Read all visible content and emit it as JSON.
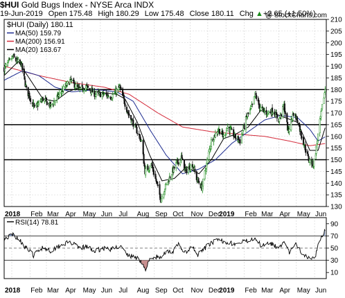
{
  "header": {
    "symbol": "$HUI",
    "index_name": "Gold Bugs Index - NYSE Arca INDX",
    "copyright": "@ StockCharts.com",
    "date": "19-Jun-2019",
    "open_label": "Open",
    "open": "175.48",
    "high_label": "High",
    "high": "180.29",
    "low_label": "Low",
    "low": "175.48",
    "close_label": "Close",
    "close": "180.11",
    "chg_label": "Chg",
    "chg": "+2.65 (+1.50%)",
    "chg_icon": "up-triangle-icon"
  },
  "colors": {
    "price": "#1a8a1a",
    "price_down": "#111111",
    "ma50": "#1b2a8f",
    "ma200": "#d42a3a",
    "ma20": "#000000",
    "rsi": "#000000",
    "grid": "#cfcfcf",
    "level_lines": "#000000"
  },
  "chart_data": [
    {
      "type": "candlestick",
      "title": "$HUI (Daily) 180.11",
      "legend": [
        {
          "label": "MA(50) 159.79",
          "color": "#1b2a8f"
        },
        {
          "label": "MA(200) 156.91",
          "color": "#d42a3a"
        },
        {
          "label": "MA(20) 163.67",
          "color": "#000000"
        }
      ],
      "legend_position": "top-left",
      "x_tick_labels": [
        "2018",
        "Feb",
        "Mar",
        "Apr",
        "May",
        "Jun",
        "Jul",
        "Aug",
        "Sep",
        "Oct",
        "Nov",
        "Dec",
        "2019",
        "Feb",
        "Mar",
        "Apr",
        "May",
        "Jun"
      ],
      "y_tick_labels": [
        "130",
        "135",
        "140",
        "145",
        "150",
        "155",
        "160",
        "165",
        "170",
        "175",
        "180",
        "185",
        "190",
        "195",
        "200",
        "205",
        "210"
      ],
      "ylim": [
        130,
        210
      ],
      "grid": true,
      "horizontal_levels": [
        180,
        165,
        150
      ],
      "price_keypoints": [
        [
          "2017-12-19",
          189
        ],
        [
          "2018-01-03",
          194
        ],
        [
          "2018-01-10",
          192
        ],
        [
          "2018-01-17",
          191
        ],
        [
          "2018-01-26",
          180
        ],
        [
          "2018-02-09",
          172
        ],
        [
          "2018-02-23",
          176
        ],
        [
          "2018-03-09",
          173
        ],
        [
          "2018-03-23",
          178
        ],
        [
          "2018-04-11",
          184
        ],
        [
          "2018-04-25",
          180
        ],
        [
          "2018-05-09",
          181
        ],
        [
          "2018-05-23",
          178
        ],
        [
          "2018-06-06",
          178
        ],
        [
          "2018-06-20",
          177
        ],
        [
          "2018-07-04",
          181
        ],
        [
          "2018-07-18",
          170
        ],
        [
          "2018-08-01",
          163
        ],
        [
          "2018-08-10",
          158
        ],
        [
          "2018-08-16",
          145
        ],
        [
          "2018-08-27",
          148
        ],
        [
          "2018-09-05",
          140
        ],
        [
          "2018-09-12",
          133
        ],
        [
          "2018-09-19",
          138
        ],
        [
          "2018-09-28",
          143
        ],
        [
          "2018-10-08",
          148
        ],
        [
          "2018-10-17",
          151
        ],
        [
          "2018-10-24",
          145
        ],
        [
          "2018-11-05",
          148
        ],
        [
          "2018-11-12",
          142
        ],
        [
          "2018-11-21",
          138
        ],
        [
          "2018-11-28",
          147
        ],
        [
          "2018-12-07",
          158
        ],
        [
          "2018-12-19",
          163
        ],
        [
          "2018-12-28",
          160
        ],
        [
          "2019-01-04",
          164
        ],
        [
          "2019-01-16",
          160
        ],
        [
          "2019-01-25",
          158
        ],
        [
          "2019-02-05",
          168
        ],
        [
          "2019-02-15",
          173
        ],
        [
          "2019-02-20",
          178
        ],
        [
          "2019-02-28",
          172
        ],
        [
          "2019-03-11",
          170
        ],
        [
          "2019-03-22",
          171
        ],
        [
          "2019-04-01",
          167
        ],
        [
          "2019-04-10",
          173
        ],
        [
          "2019-04-17",
          162
        ],
        [
          "2019-04-26",
          170
        ],
        [
          "2019-05-03",
          167
        ],
        [
          "2019-05-10",
          160
        ],
        [
          "2019-05-22",
          150
        ],
        [
          "2019-05-30",
          148
        ],
        [
          "2019-06-04",
          155
        ],
        [
          "2019-06-11",
          168
        ],
        [
          "2019-06-19",
          180.11
        ]
      ],
      "ma20_keypoints": [
        [
          "2017-12-19",
          186
        ],
        [
          "2018-01-12",
          192
        ],
        [
          "2018-02-02",
          184
        ],
        [
          "2018-02-23",
          176
        ],
        [
          "2018-03-16",
          175
        ],
        [
          "2018-04-06",
          179
        ],
        [
          "2018-04-27",
          181
        ],
        [
          "2018-05-25",
          179
        ],
        [
          "2018-06-29",
          178
        ],
        [
          "2018-07-13",
          176
        ],
        [
          "2018-08-03",
          166
        ],
        [
          "2018-08-24",
          152
        ],
        [
          "2018-09-14",
          141
        ],
        [
          "2018-10-05",
          142
        ],
        [
          "2018-10-26",
          147
        ],
        [
          "2018-11-16",
          144
        ],
        [
          "2018-12-07",
          150
        ],
        [
          "2018-12-28",
          159
        ],
        [
          "2019-01-18",
          161
        ],
        [
          "2019-02-08",
          164
        ],
        [
          "2019-03-01",
          171
        ],
        [
          "2019-03-22",
          170
        ],
        [
          "2019-04-12",
          168
        ],
        [
          "2019-05-03",
          166
        ],
        [
          "2019-05-24",
          154
        ],
        [
          "2019-06-07",
          154
        ],
        [
          "2019-06-19",
          163.67
        ]
      ],
      "ma50_keypoints": [
        [
          "2017-12-19",
          184
        ],
        [
          "2018-01-19",
          188
        ],
        [
          "2018-02-16",
          186
        ],
        [
          "2018-03-16",
          181
        ],
        [
          "2018-04-13",
          179
        ],
        [
          "2018-05-25",
          180
        ],
        [
          "2018-06-29",
          179
        ],
        [
          "2018-07-27",
          175
        ],
        [
          "2018-08-24",
          163
        ],
        [
          "2018-09-21",
          152
        ],
        [
          "2018-10-19",
          144
        ],
        [
          "2018-11-16",
          146
        ],
        [
          "2018-12-14",
          150
        ],
        [
          "2019-01-11",
          157
        ],
        [
          "2019-02-08",
          162
        ],
        [
          "2019-03-08",
          167
        ],
        [
          "2019-04-05",
          169
        ],
        [
          "2019-05-03",
          168
        ],
        [
          "2019-05-24",
          163
        ],
        [
          "2019-06-07",
          158
        ],
        [
          "2019-06-19",
          159.79
        ]
      ],
      "ma200_keypoints": [
        [
          "2017-12-19",
          190
        ],
        [
          "2018-02-16",
          186
        ],
        [
          "2018-04-13",
          183
        ],
        [
          "2018-06-08",
          181
        ],
        [
          "2018-07-20",
          178
        ],
        [
          "2018-09-07",
          170
        ],
        [
          "2018-10-19",
          164
        ],
        [
          "2018-12-07",
          162
        ],
        [
          "2019-01-18",
          161
        ],
        [
          "2019-03-08",
          160
        ],
        [
          "2019-04-19",
          158
        ],
        [
          "2019-05-24",
          156
        ],
        [
          "2019-06-19",
          156.91
        ]
      ]
    },
    {
      "type": "line",
      "title": "RSI(14) 78.81",
      "x_tick_labels": [
        "2018",
        "Feb",
        "Mar",
        "Apr",
        "May",
        "Jun",
        "Jul",
        "Aug",
        "Sep",
        "Oct",
        "Nov",
        "Dec",
        "2019",
        "Feb",
        "Mar",
        "Apr",
        "May",
        "Jun"
      ],
      "y_tick_labels": [
        "10",
        "30",
        "50",
        "70",
        "90"
      ],
      "ylim": [
        0,
        100
      ],
      "reference_lines": [
        70,
        50,
        30
      ],
      "rsi_keypoints": [
        [
          "2017-12-19",
          65
        ],
        [
          "2018-01-03",
          72
        ],
        [
          "2018-01-12",
          66
        ],
        [
          "2018-01-24",
          52
        ],
        [
          "2018-02-07",
          38
        ],
        [
          "2018-02-23",
          52
        ],
        [
          "2018-03-09",
          45
        ],
        [
          "2018-03-23",
          55
        ],
        [
          "2018-04-11",
          60
        ],
        [
          "2018-04-25",
          50
        ],
        [
          "2018-05-09",
          52
        ],
        [
          "2018-05-23",
          45
        ],
        [
          "2018-06-06",
          50
        ],
        [
          "2018-06-20",
          48
        ],
        [
          "2018-07-04",
          54
        ],
        [
          "2018-07-18",
          38
        ],
        [
          "2018-08-01",
          35
        ],
        [
          "2018-08-10",
          28
        ],
        [
          "2018-08-16",
          14
        ],
        [
          "2018-08-24",
          30
        ],
        [
          "2018-09-05",
          36
        ],
        [
          "2018-09-12",
          33
        ],
        [
          "2018-09-21",
          46
        ],
        [
          "2018-10-03",
          44
        ],
        [
          "2018-10-12",
          56
        ],
        [
          "2018-10-24",
          42
        ],
        [
          "2018-11-05",
          52
        ],
        [
          "2018-11-13",
          38
        ],
        [
          "2018-11-23",
          47
        ],
        [
          "2018-12-05",
          58
        ],
        [
          "2018-12-19",
          63
        ],
        [
          "2019-01-04",
          60
        ],
        [
          "2019-01-18",
          56
        ],
        [
          "2019-02-06",
          62
        ],
        [
          "2019-02-20",
          68
        ],
        [
          "2019-03-01",
          54
        ],
        [
          "2019-03-15",
          60
        ],
        [
          "2019-03-28",
          52
        ],
        [
          "2019-04-10",
          58
        ],
        [
          "2019-04-19",
          43
        ],
        [
          "2019-04-30",
          56
        ],
        [
          "2019-05-10",
          42
        ],
        [
          "2019-05-24",
          34
        ],
        [
          "2019-06-03",
          38
        ],
        [
          "2019-06-07",
          58
        ],
        [
          "2019-06-13",
          70
        ],
        [
          "2019-06-19",
          78.81
        ]
      ]
    }
  ]
}
